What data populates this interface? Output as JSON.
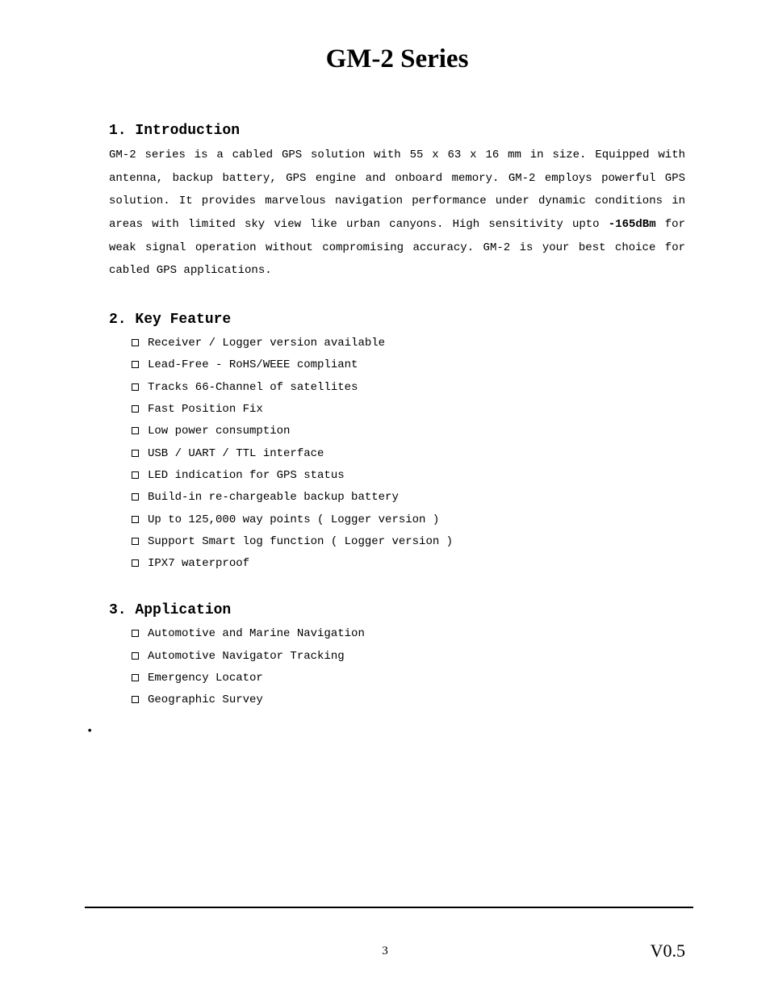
{
  "title": "GM-2 Series",
  "sections": {
    "introduction": {
      "heading": "1. Introduction",
      "body_pre": "GM-2 series is a cabled GPS solution with 55 x 63 x 16 mm in size. Equipped with antenna, backup battery, GPS engine and onboard memory. GM-2 employs powerful GPS solution. It provides marvelous navigation performance under dynamic conditions in areas with limited sky view like urban canyons. High sensitivity upto ",
      "body_bold": "-165dBm",
      "body_post": " for weak signal operation without compromising accuracy. GM-2 is your best choice for cabled GPS applications."
    },
    "feature": {
      "heading": "2. Key Feature",
      "items": [
        "Receiver / Logger version available",
        "Lead-Free - RoHS/WEEE compliant",
        "Tracks 66-Channel of satellites",
        "Fast Position Fix",
        "Low power consumption",
        "USB / UART / TTL interface",
        "LED indication for GPS status",
        "Build-in re-chargeable backup battery",
        "Up to 125,000 way points ( Logger version )",
        "Support Smart log function ( Logger version )",
        "IPX7 waterproof"
      ]
    },
    "application": {
      "heading": "3. Application",
      "items": [
        "Automotive and Marine Navigation",
        "Automotive Navigator Tracking",
        "Emergency Locator",
        "Geographic Survey"
      ]
    }
  },
  "stray_bullet": "•",
  "footer": {
    "page": "3",
    "version": "V0.5"
  }
}
